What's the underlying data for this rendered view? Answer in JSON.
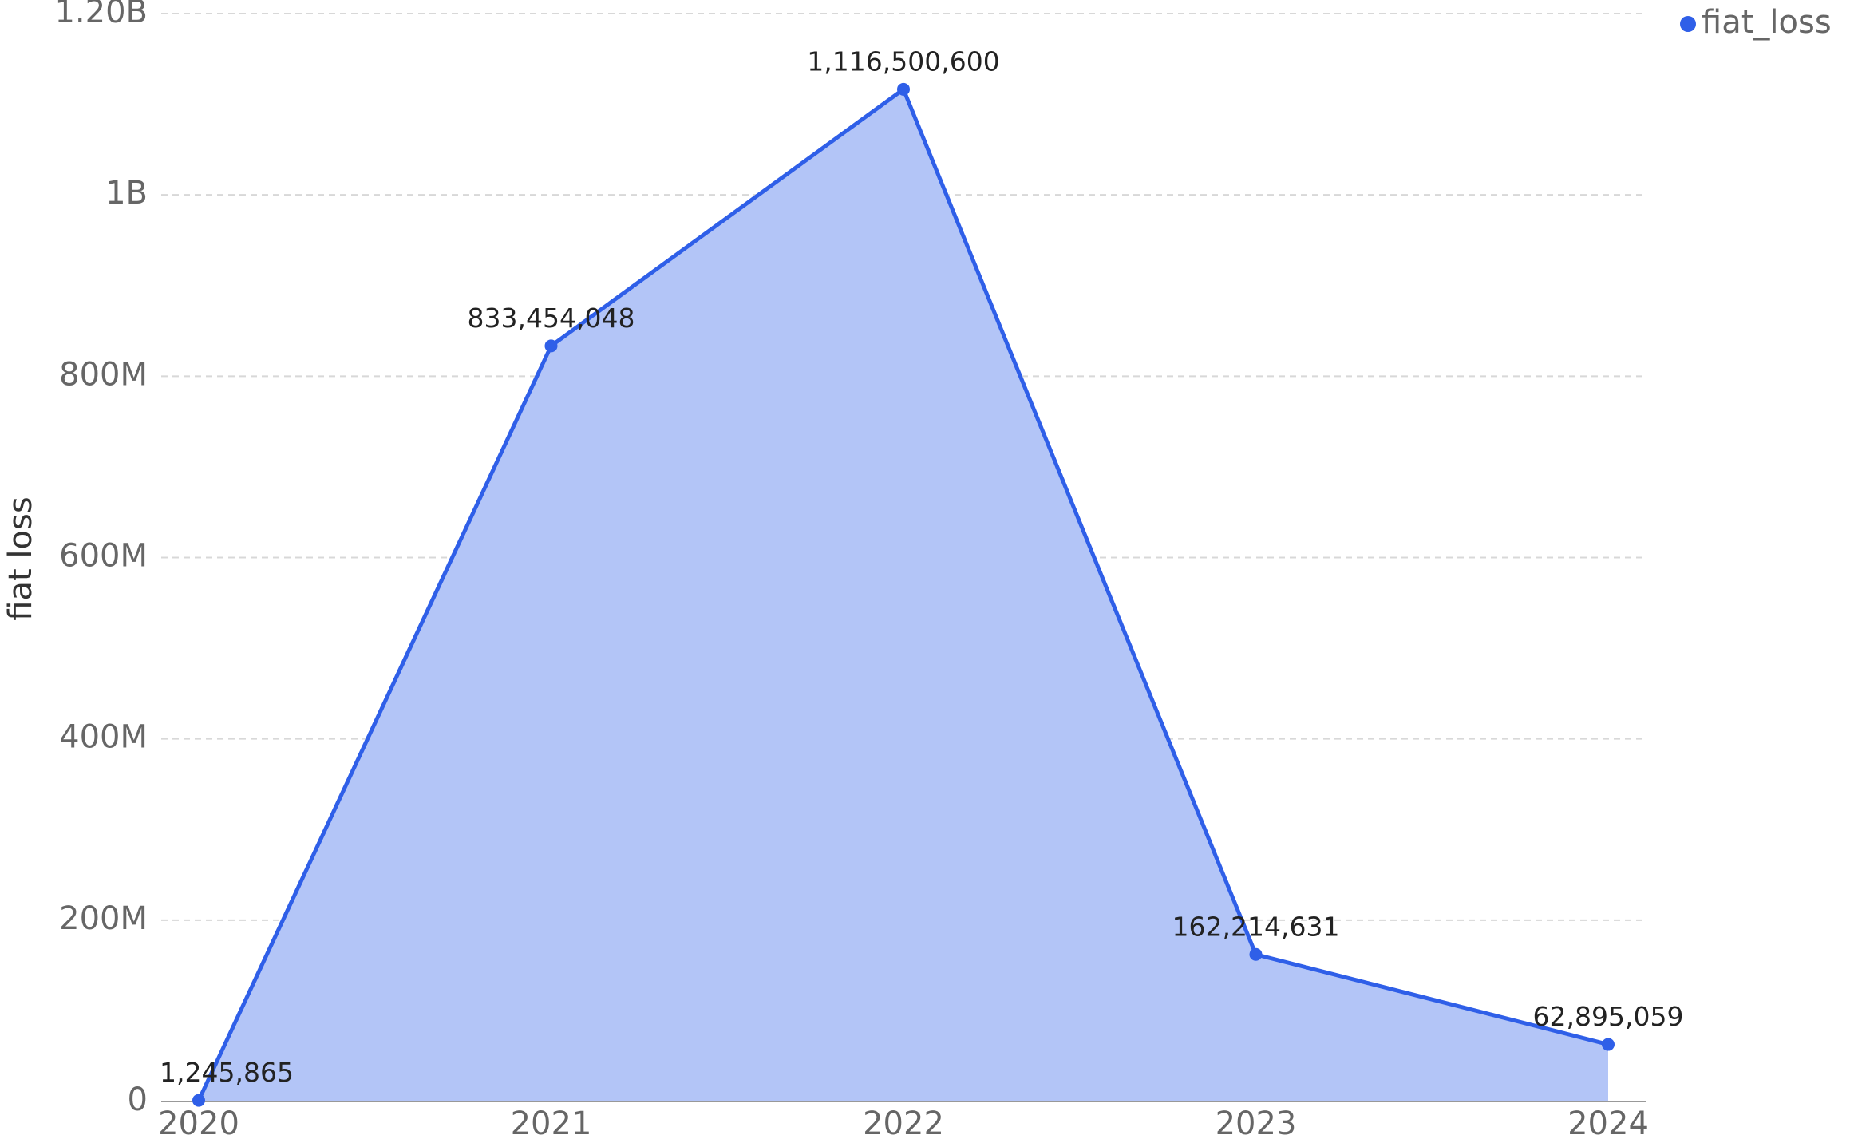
{
  "chart_data": {
    "type": "area",
    "y_label": "fiat loss",
    "categories": [
      "2020",
      "2021",
      "2022",
      "2023",
      "2024"
    ],
    "series": [
      {
        "name": "fiat_loss",
        "color": "#2f5fe8",
        "fill": "#b3c5f7",
        "values": [
          1245865,
          833454048,
          1116500600,
          162214631,
          62895059
        ],
        "value_labels": [
          "1,245,865",
          "833,454,048",
          "1,116,500,600",
          "162,214,631",
          "62,895,059"
        ]
      }
    ],
    "ylim": [
      0,
      1200000000
    ],
    "yticks": [
      0,
      {
        "value": 200000000,
        "label": "200M"
      },
      {
        "value": 400000000,
        "label": "400M"
      },
      {
        "value": 600000000,
        "label": "600M"
      },
      {
        "value": 800000000,
        "label": "800M"
      },
      {
        "value": 1000000000,
        "label": "1B"
      },
      {
        "value": 1200000000,
        "label": "1.20B"
      }
    ],
    "grid": true,
    "legend": "top-right"
  }
}
